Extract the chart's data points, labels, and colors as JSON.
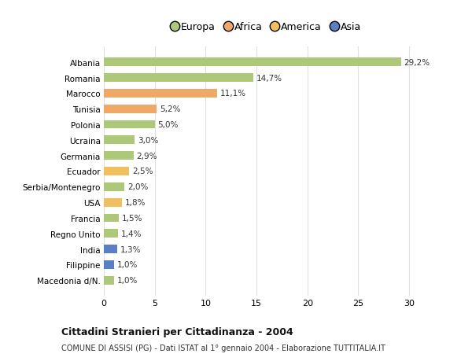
{
  "categories": [
    "Macedonia d/N.",
    "Filippine",
    "India",
    "Regno Unito",
    "Francia",
    "USA",
    "Serbia/Montenegro",
    "Ecuador",
    "Germania",
    "Ucraina",
    "Polonia",
    "Tunisia",
    "Marocco",
    "Romania",
    "Albania"
  ],
  "values": [
    1.0,
    1.0,
    1.3,
    1.4,
    1.5,
    1.8,
    2.0,
    2.5,
    2.9,
    3.0,
    5.0,
    5.2,
    11.1,
    14.7,
    29.2
  ],
  "labels": [
    "1,0%",
    "1,0%",
    "1,3%",
    "1,4%",
    "1,5%",
    "1,8%",
    "2,0%",
    "2,5%",
    "2,9%",
    "3,0%",
    "5,0%",
    "5,2%",
    "11,1%",
    "14,7%",
    "29,2%"
  ],
  "colors": [
    "#adc878",
    "#5b7ec9",
    "#5b7ec9",
    "#adc878",
    "#adc878",
    "#f0c060",
    "#adc878",
    "#f0c060",
    "#adc878",
    "#adc878",
    "#adc878",
    "#f0a868",
    "#f0a868",
    "#adc878",
    "#adc878"
  ],
  "legend": [
    {
      "label": "Europa",
      "color": "#adc878"
    },
    {
      "label": "Africa",
      "color": "#f0a868"
    },
    {
      "label": "America",
      "color": "#f0c060"
    },
    {
      "label": "Asia",
      "color": "#5b7ec9"
    }
  ],
  "title": "Cittadini Stranieri per Cittadinanza - 2004",
  "subtitle": "COMUNE DI ASSISI (PG) - Dati ISTAT al 1° gennaio 2004 - Elaborazione TUTTITALIA.IT",
  "xlim": [
    0,
    32
  ],
  "xticks": [
    0,
    5,
    10,
    15,
    20,
    25,
    30
  ],
  "background_color": "#ffffff",
  "grid_color": "#e0e0e0",
  "bar_height": 0.55
}
